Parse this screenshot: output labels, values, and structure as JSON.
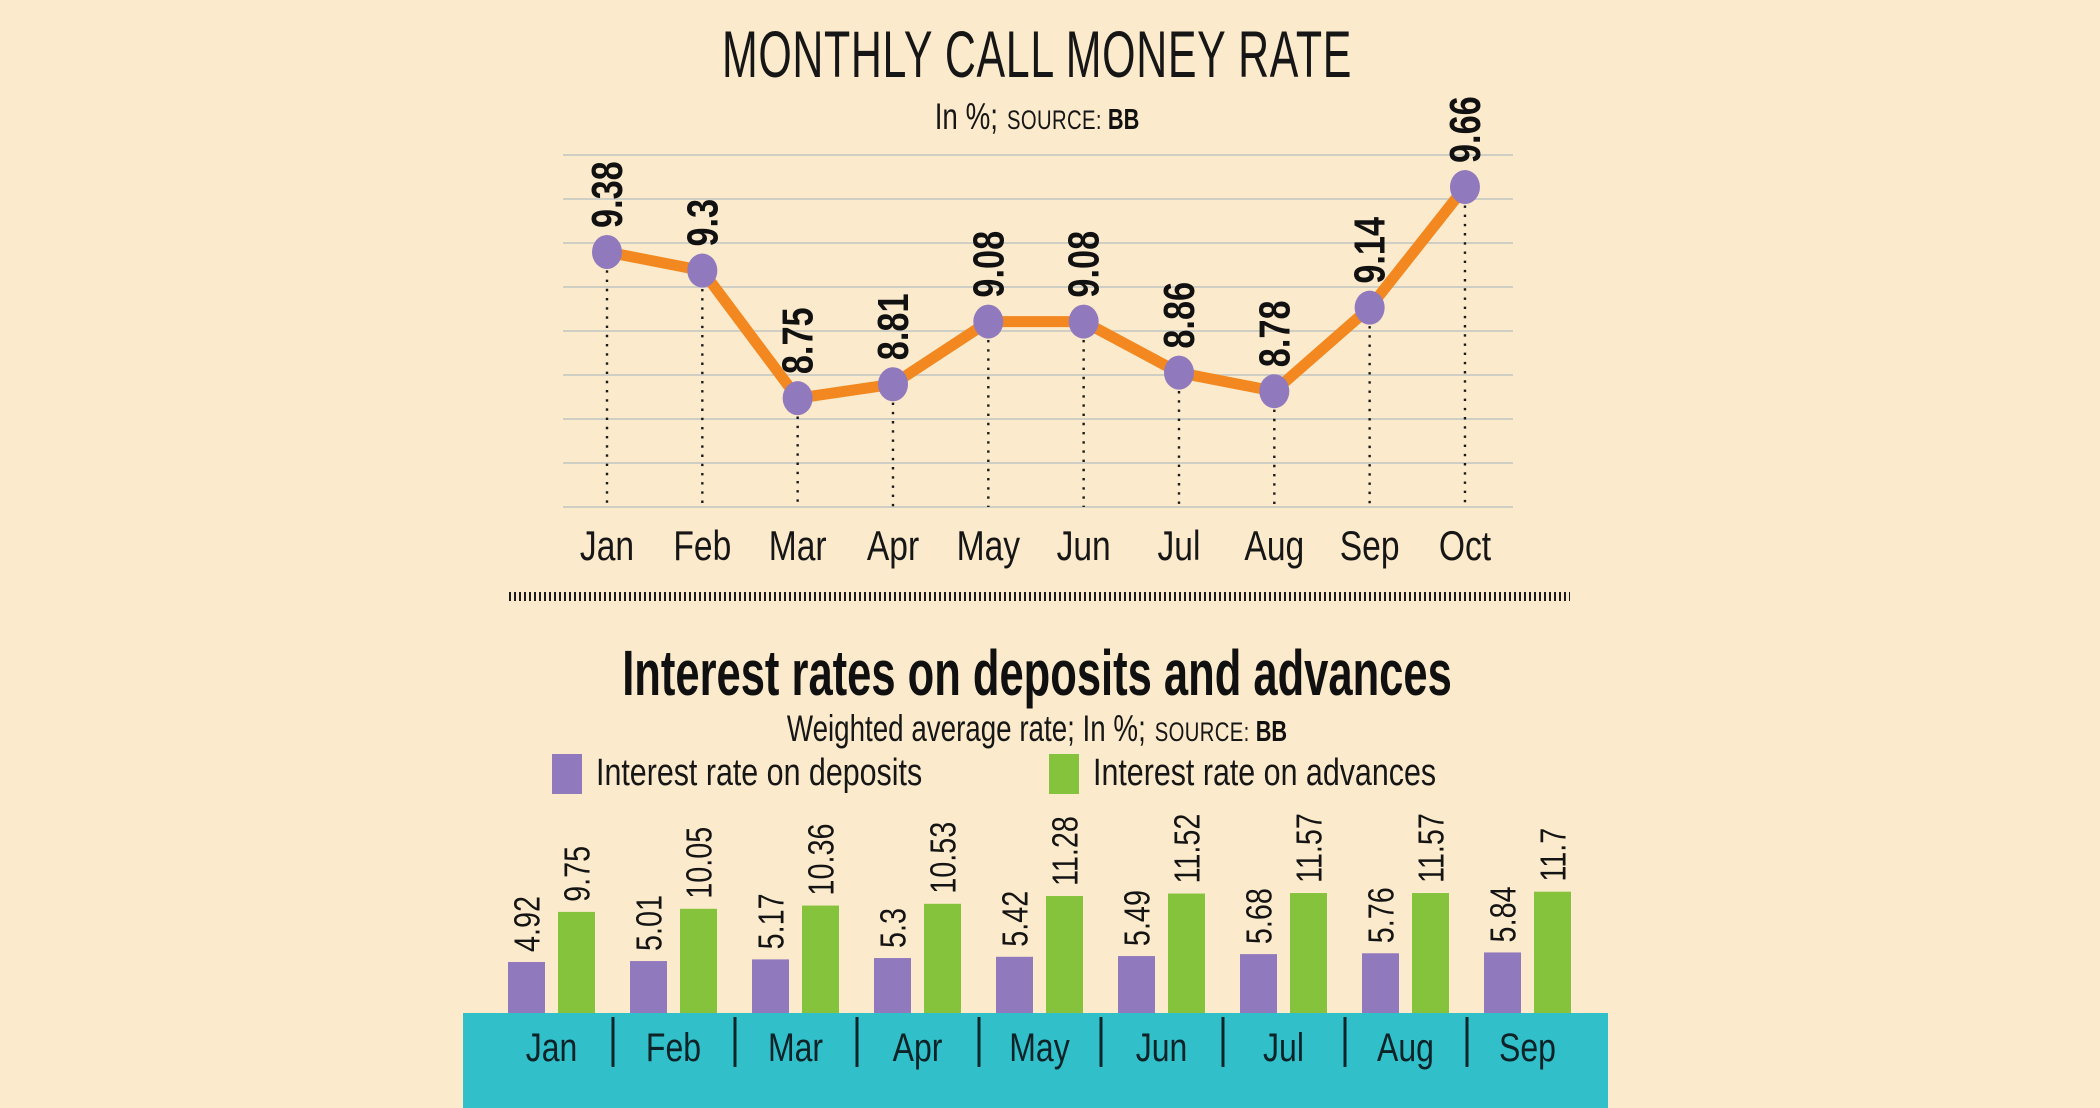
{
  "page": {
    "background_color": "#FBEACB",
    "text_color": "#141414"
  },
  "chart_data": [
    {
      "type": "line",
      "title": "MONTHLY CALL MONEY RATE",
      "subtitle": "In %;",
      "source_label": "SOURCE:",
      "source_value": "BB",
      "categories": [
        "Jan",
        "Feb",
        "Mar",
        "Apr",
        "May",
        "Jun",
        "Jul",
        "Aug",
        "Sep",
        "Oct"
      ],
      "values": [
        9.38,
        9.3,
        8.75,
        8.81,
        9.08,
        9.08,
        8.86,
        8.78,
        9.14,
        9.66
      ],
      "line_color": "#F2881F",
      "marker_color": "#9179BE",
      "gridline_color": "#CFCEC5",
      "drop_line_style": "dotted",
      "value_label_rotation": -90,
      "grid": true,
      "ylim": [
        8.3,
        9.85
      ],
      "legend_position": "none"
    },
    {
      "type": "bar",
      "title": "Interest rates on deposits and advances",
      "subtitle": "Weighted average rate; In %;",
      "source_label": "SOURCE:",
      "source_value": "BB",
      "categories": [
        "Jan",
        "Feb",
        "Mar",
        "Apr",
        "May",
        "Jun",
        "Jul",
        "Aug",
        "Sep"
      ],
      "series": [
        {
          "name": "Interest rate on deposits",
          "color": "#9179BE",
          "values": [
            4.92,
            5.01,
            5.17,
            5.3,
            5.42,
            5.49,
            5.68,
            5.76,
            5.84
          ]
        },
        {
          "name": "Interest rate on advances",
          "color": "#86C33D",
          "values": [
            9.75,
            10.05,
            10.36,
            10.53,
            11.28,
            11.52,
            11.57,
            11.57,
            11.7
          ]
        }
      ],
      "axis_band_color": "#31BFCA",
      "value_label_rotation": -90,
      "legend_position": "top",
      "ylim": [
        0,
        12
      ]
    }
  ]
}
